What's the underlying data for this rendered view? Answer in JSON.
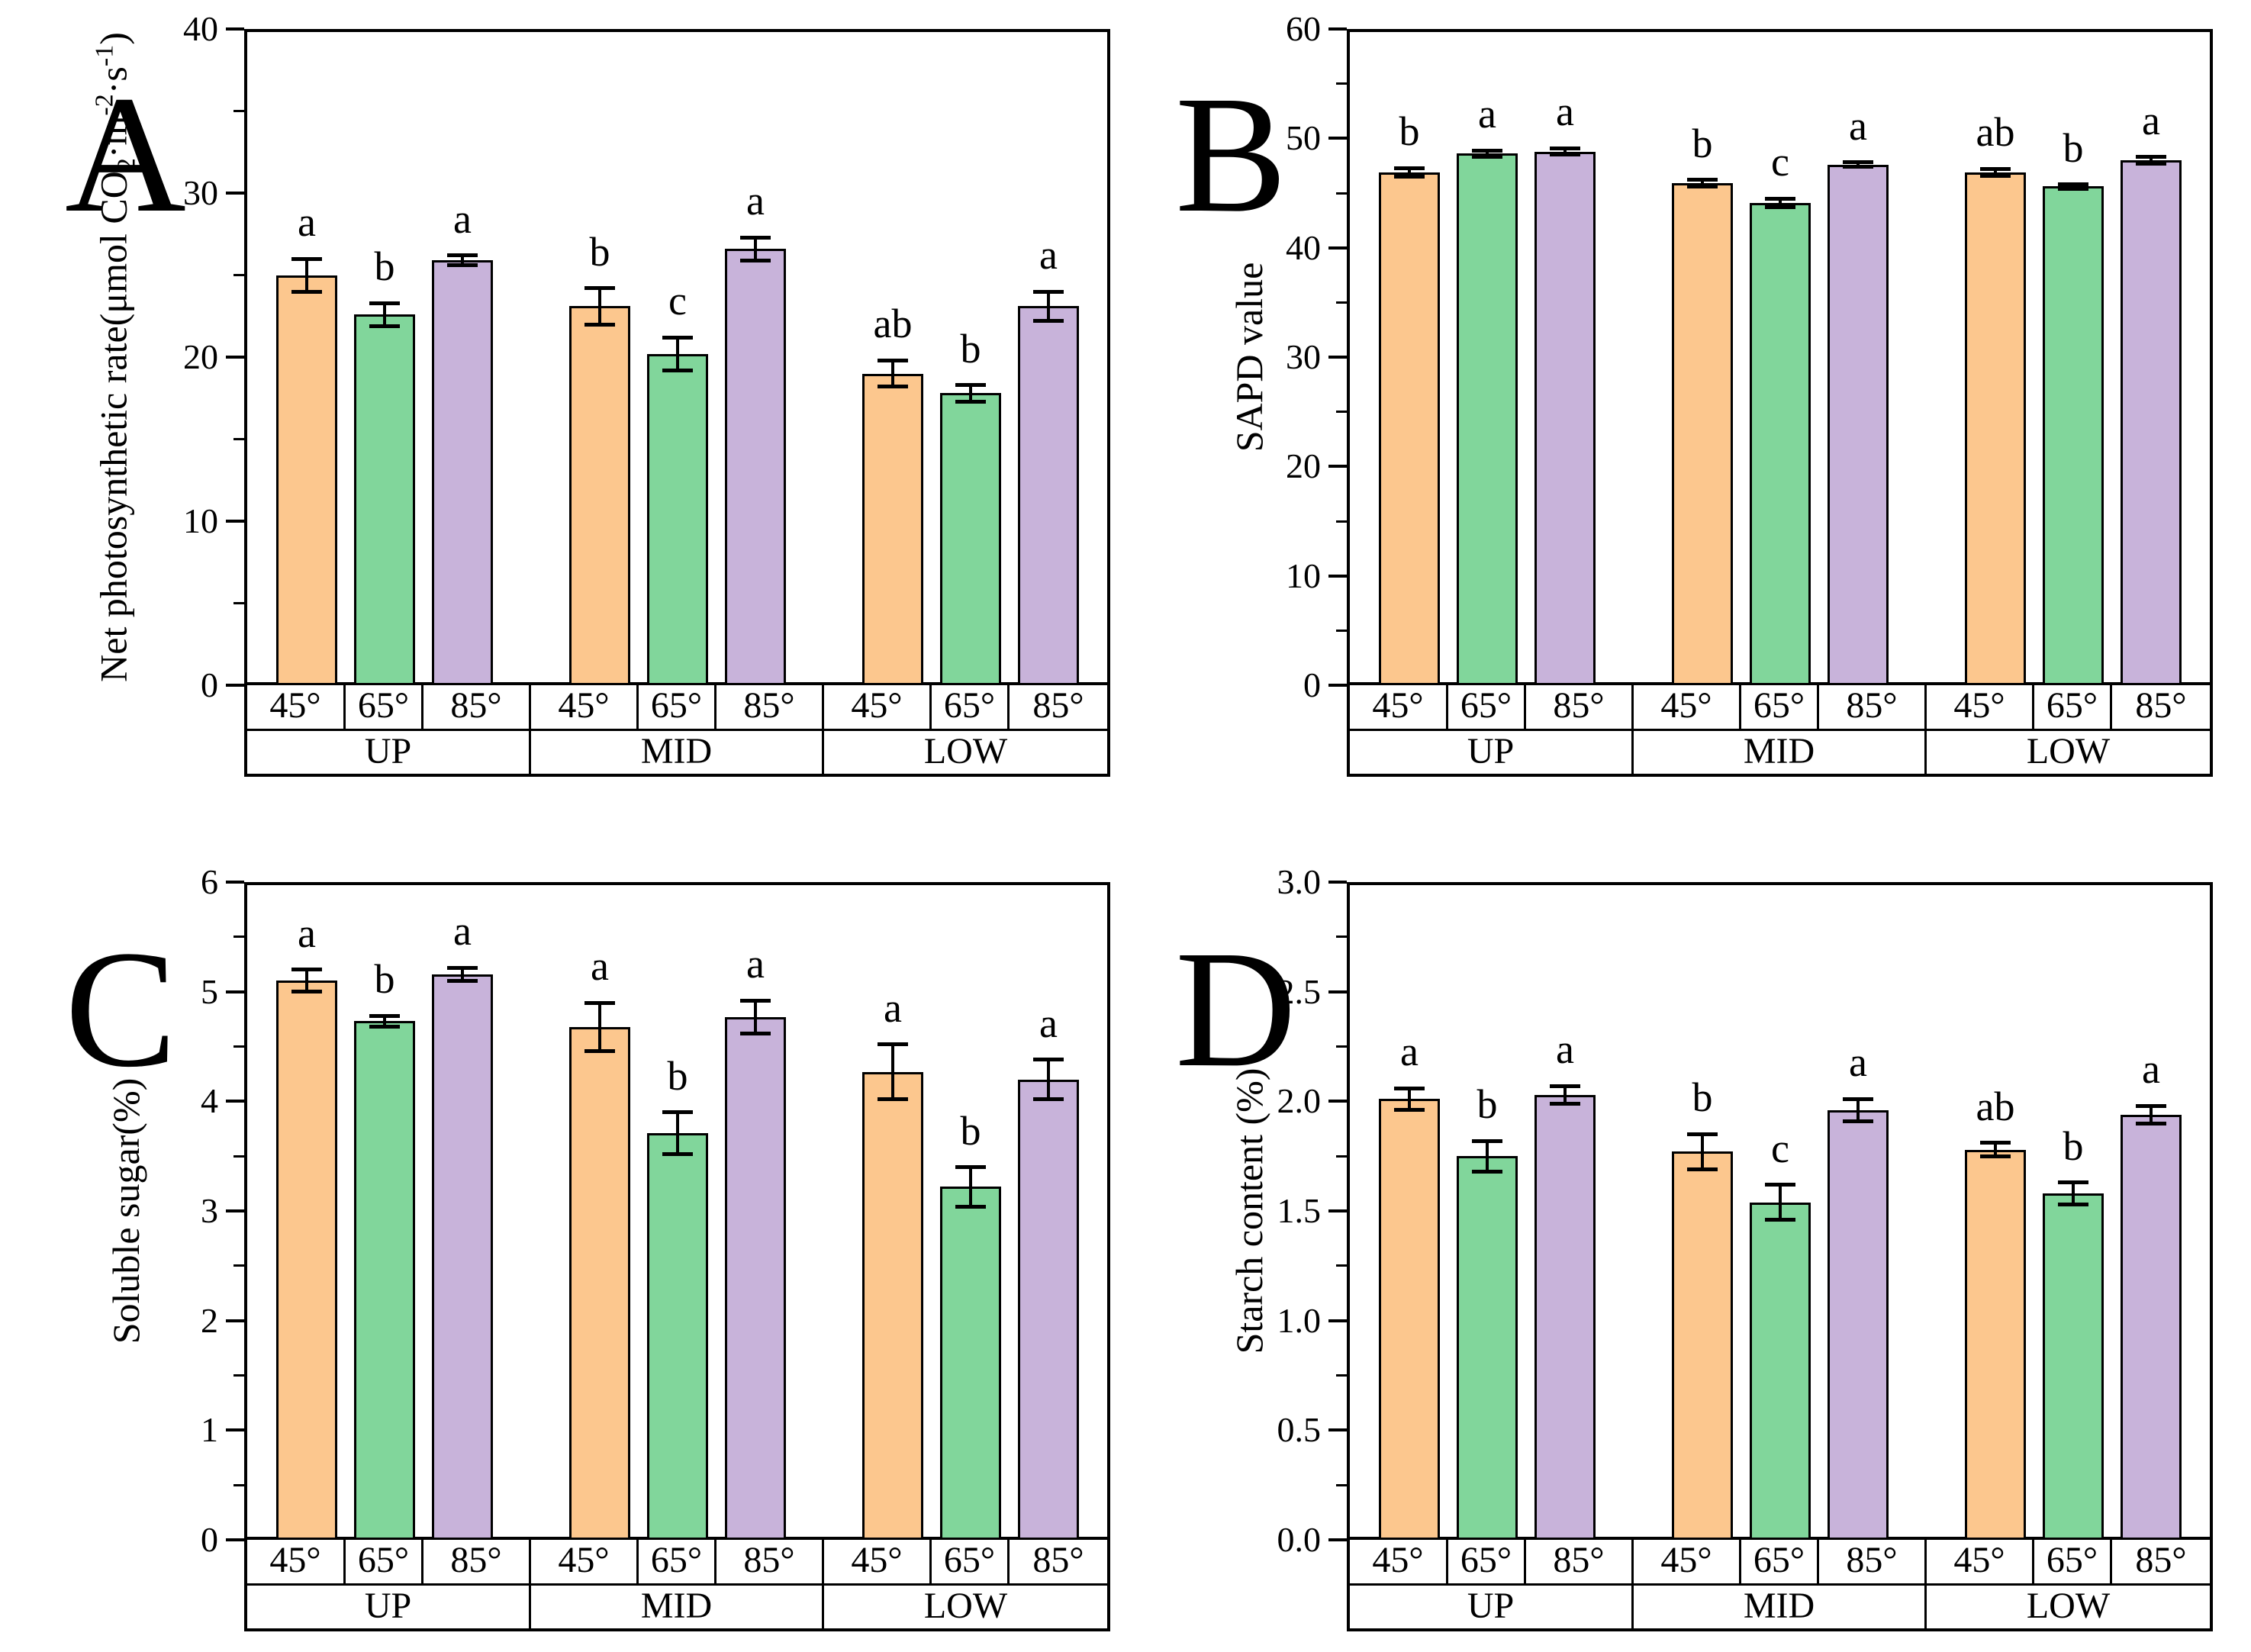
{
  "figure": {
    "background": "#ffffff",
    "bar_border_color": "#000000",
    "bar_colors": {
      "45°": "#FCC78E",
      "65°": "#81D69B",
      "85°": "#C8B3DA"
    },
    "x_tick_labels": [
      "45°",
      "65°",
      "85°"
    ],
    "group_labels": [
      "UP",
      "MID",
      "LOW"
    ],
    "panel_letters": [
      "A",
      "B",
      "C",
      "D"
    ]
  },
  "chart_data": [
    {
      "type": "bar",
      "panel": "A",
      "title": "",
      "ylabel": "Net photosynthetic rate(μmol CO₂·m⁻²·s⁻¹)",
      "ylabel_parts": [
        {
          "t": "Net photosynthetic rate(μmol CO"
        },
        {
          "t": "2",
          "style": "sub"
        },
        {
          "t": "·m"
        },
        {
          "t": "-2",
          "style": "sup"
        },
        {
          "t": "·s"
        },
        {
          "t": "-1",
          "style": "sup"
        },
        {
          "t": ")"
        }
      ],
      "ylim": [
        0,
        40
      ],
      "ytick_step": 10,
      "yminor_step": 5,
      "ytick_labels": [
        "0",
        "10",
        "20",
        "30",
        "40"
      ],
      "grid": false,
      "legend": "none",
      "categories": [
        "UP",
        "MID",
        "LOW"
      ],
      "sub_categories": [
        "45°",
        "65°",
        "85°"
      ],
      "groups": [
        {
          "label": "UP",
          "bars": [
            {
              "angle": "45°",
              "value": 25.0,
              "error": 1.0,
              "sig": "a"
            },
            {
              "angle": "65°",
              "value": 22.6,
              "error": 0.7,
              "sig": "b"
            },
            {
              "angle": "85°",
              "value": 25.9,
              "error": 0.3,
              "sig": "a"
            }
          ]
        },
        {
          "label": "MID",
          "bars": [
            {
              "angle": "45°",
              "value": 23.1,
              "error": 1.1,
              "sig": "b"
            },
            {
              "angle": "65°",
              "value": 20.2,
              "error": 1.0,
              "sig": "c"
            },
            {
              "angle": "85°",
              "value": 26.6,
              "error": 0.7,
              "sig": "a"
            }
          ]
        },
        {
          "label": "LOW",
          "bars": [
            {
              "angle": "45°",
              "value": 19.0,
              "error": 0.8,
              "sig": "ab"
            },
            {
              "angle": "65°",
              "value": 17.8,
              "error": 0.5,
              "sig": "b"
            },
            {
              "angle": "85°",
              "value": 23.1,
              "error": 0.9,
              "sig": "a"
            }
          ]
        }
      ]
    },
    {
      "type": "bar",
      "panel": "B",
      "title": "",
      "ylabel": "SAPD value",
      "ylabel_parts": [
        {
          "t": "SAPD value"
        }
      ],
      "ylim": [
        0,
        60
      ],
      "ytick_step": 10,
      "yminor_step": 5,
      "ytick_labels": [
        "0",
        "10",
        "20",
        "30",
        "40",
        "50",
        "60"
      ],
      "grid": false,
      "legend": "none",
      "categories": [
        "UP",
        "MID",
        "LOW"
      ],
      "sub_categories": [
        "45°",
        "65°",
        "85°"
      ],
      "groups": [
        {
          "label": "UP",
          "bars": [
            {
              "angle": "45°",
              "value": 46.9,
              "error": 0.4,
              "sig": "b"
            },
            {
              "angle": "65°",
              "value": 48.6,
              "error": 0.3,
              "sig": "a"
            },
            {
              "angle": "85°",
              "value": 48.8,
              "error": 0.3,
              "sig": "a"
            }
          ]
        },
        {
          "label": "MID",
          "bars": [
            {
              "angle": "45°",
              "value": 45.9,
              "error": 0.3,
              "sig": "b"
            },
            {
              "angle": "65°",
              "value": 44.1,
              "error": 0.4,
              "sig": "c"
            },
            {
              "angle": "85°",
              "value": 47.6,
              "error": 0.2,
              "sig": "a"
            }
          ]
        },
        {
          "label": "LOW",
          "bars": [
            {
              "angle": "45°",
              "value": 46.9,
              "error": 0.3,
              "sig": "ab"
            },
            {
              "angle": "65°",
              "value": 45.6,
              "error": 0.2,
              "sig": "b"
            },
            {
              "angle": "85°",
              "value": 48.0,
              "error": 0.3,
              "sig": "a"
            }
          ]
        }
      ]
    },
    {
      "type": "bar",
      "panel": "C",
      "title": "",
      "ylabel": "Soluble sugar(%)",
      "ylabel_parts": [
        {
          "t": "Soluble sugar(%)"
        }
      ],
      "ylim": [
        0,
        6
      ],
      "ytick_step": 1,
      "yminor_step": 0.5,
      "ytick_labels": [
        "0",
        "1",
        "2",
        "3",
        "4",
        "5",
        "6"
      ],
      "grid": false,
      "legend": "none",
      "categories": [
        "UP",
        "MID",
        "LOW"
      ],
      "sub_categories": [
        "45°",
        "65°",
        "85°"
      ],
      "groups": [
        {
          "label": "UP",
          "bars": [
            {
              "angle": "45°",
              "value": 5.1,
              "error": 0.1,
              "sig": "a"
            },
            {
              "angle": "65°",
              "value": 4.73,
              "error": 0.05,
              "sig": "b"
            },
            {
              "angle": "85°",
              "value": 5.16,
              "error": 0.06,
              "sig": "a"
            }
          ]
        },
        {
          "label": "MID",
          "bars": [
            {
              "angle": "45°",
              "value": 4.68,
              "error": 0.22,
              "sig": "a"
            },
            {
              "angle": "65°",
              "value": 3.71,
              "error": 0.19,
              "sig": "b"
            },
            {
              "angle": "85°",
              "value": 4.77,
              "error": 0.15,
              "sig": "a"
            }
          ]
        },
        {
          "label": "LOW",
          "bars": [
            {
              "angle": "45°",
              "value": 4.27,
              "error": 0.25,
              "sig": "a"
            },
            {
              "angle": "65°",
              "value": 3.22,
              "error": 0.18,
              "sig": "b"
            },
            {
              "angle": "85°",
              "value": 4.2,
              "error": 0.18,
              "sig": "a"
            }
          ]
        }
      ]
    },
    {
      "type": "bar",
      "panel": "D",
      "title": "",
      "ylabel": "Starch content (%)",
      "ylabel_parts": [
        {
          "t": "Starch content (%)"
        }
      ],
      "ylim": [
        0,
        3
      ],
      "ytick_step": 0.5,
      "yminor_step": 0.25,
      "ytick_labels": [
        "0.0",
        "0.5",
        "1.0",
        "1.5",
        "2.0",
        "2.5",
        "3.0"
      ],
      "grid": false,
      "legend": "none",
      "categories": [
        "UP",
        "MID",
        "LOW"
      ],
      "sub_categories": [
        "45°",
        "65°",
        "85°"
      ],
      "groups": [
        {
          "label": "UP",
          "bars": [
            {
              "angle": "45°",
              "value": 2.01,
              "error": 0.05,
              "sig": "a"
            },
            {
              "angle": "65°",
              "value": 1.75,
              "error": 0.07,
              "sig": "b"
            },
            {
              "angle": "85°",
              "value": 2.03,
              "error": 0.04,
              "sig": "a"
            }
          ]
        },
        {
          "label": "MID",
          "bars": [
            {
              "angle": "45°",
              "value": 1.77,
              "error": 0.08,
              "sig": "b"
            },
            {
              "angle": "65°",
              "value": 1.54,
              "error": 0.08,
              "sig": "c"
            },
            {
              "angle": "85°",
              "value": 1.96,
              "error": 0.05,
              "sig": "a"
            }
          ]
        },
        {
          "label": "LOW",
          "bars": [
            {
              "angle": "45°",
              "value": 1.78,
              "error": 0.03,
              "sig": "ab"
            },
            {
              "angle": "65°",
              "value": 1.58,
              "error": 0.05,
              "sig": "b"
            },
            {
              "angle": "85°",
              "value": 1.94,
              "error": 0.04,
              "sig": "a"
            }
          ]
        }
      ]
    }
  ]
}
